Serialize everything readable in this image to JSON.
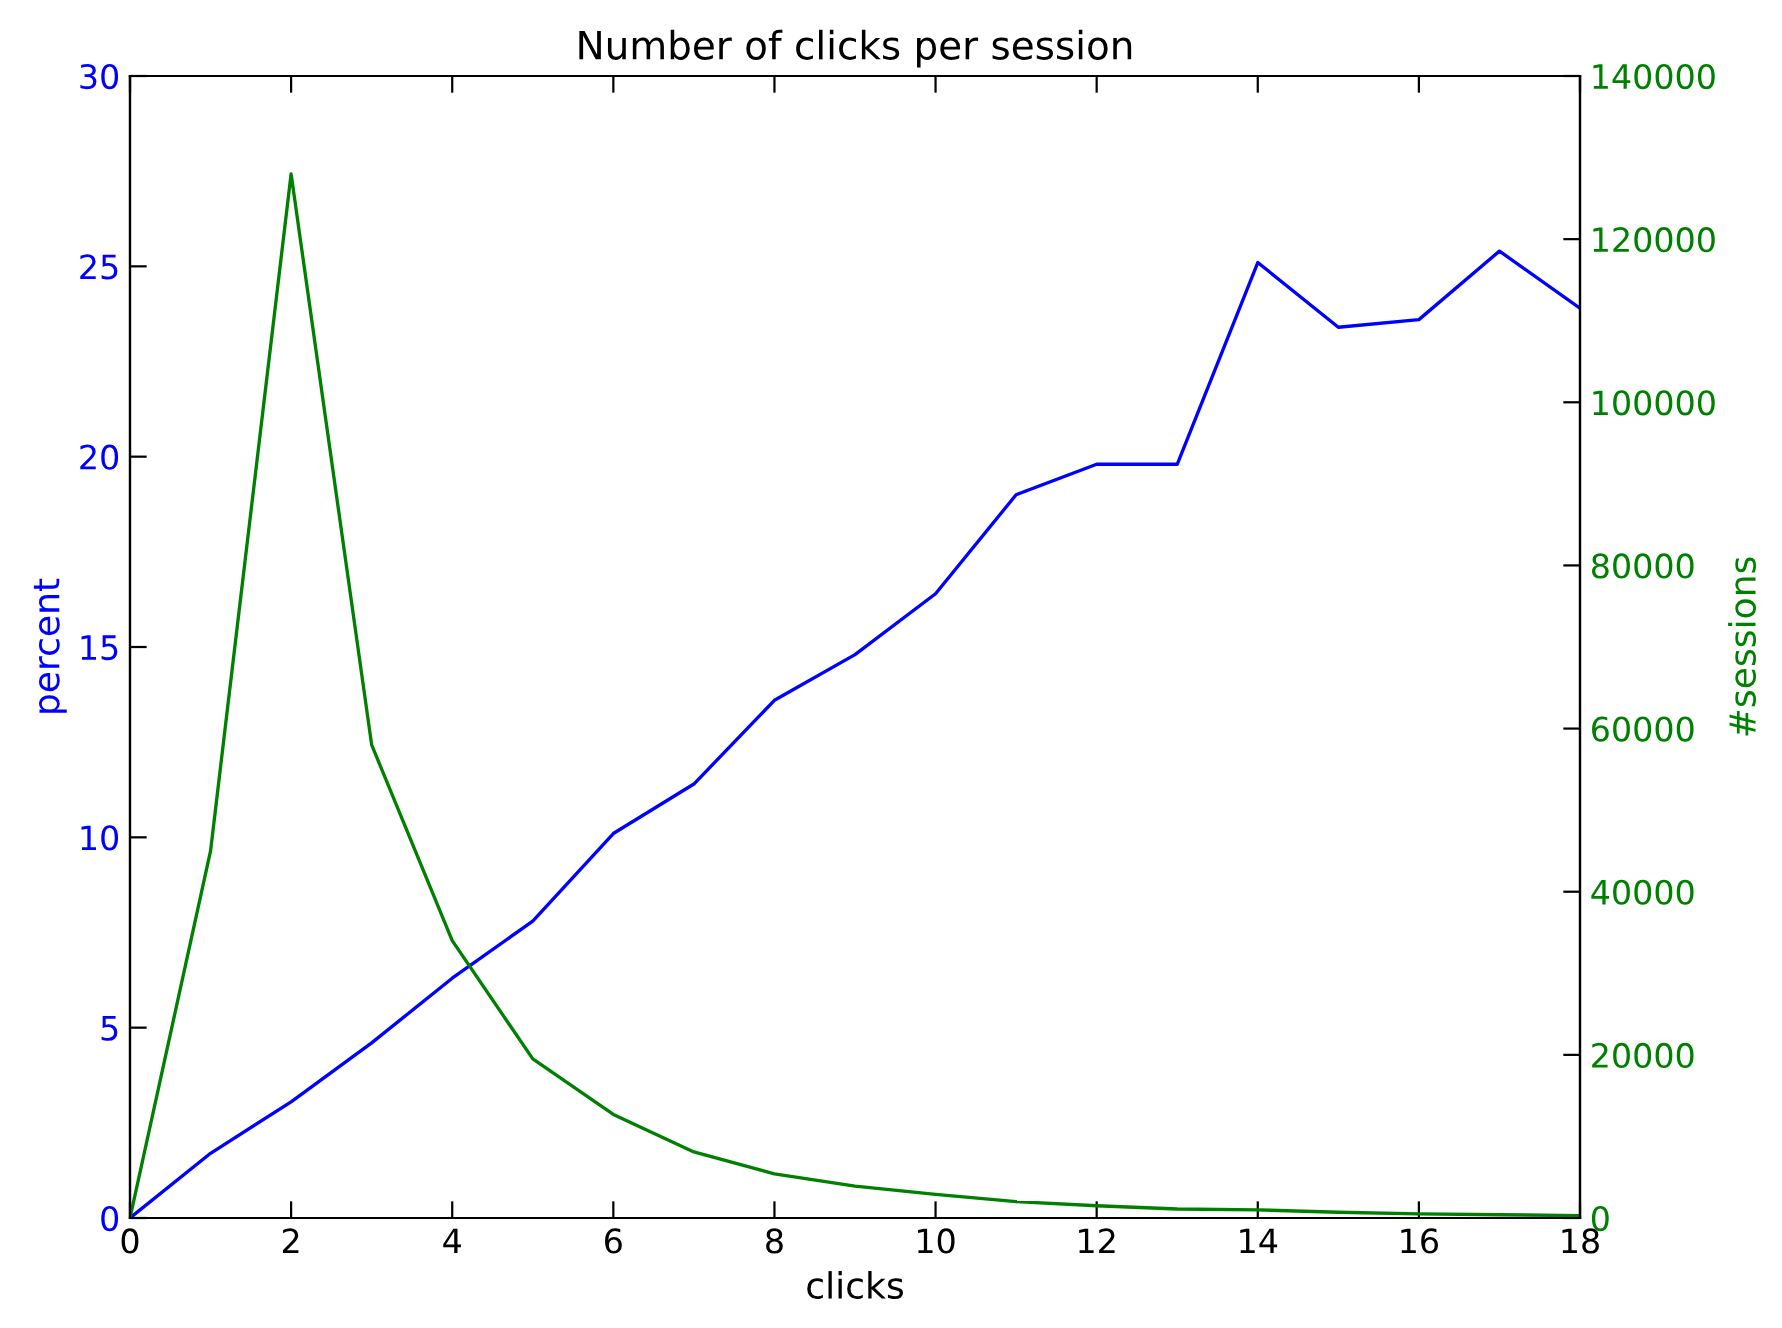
{
  "chart_data": {
    "type": "line",
    "title": "Number of clicks per session",
    "xlabel": "clicks",
    "ylabel": "percent",
    "y2label": "#sessions",
    "x": [
      0,
      1,
      2,
      3,
      4,
      5,
      6,
      7,
      8,
      9,
      10,
      11,
      12,
      13,
      14,
      15,
      16,
      17,
      18
    ],
    "series": [
      {
        "color": "#0000ff",
        "values": [
          0,
          1.7,
          3.05,
          4.6,
          6.3,
          7.8,
          10.1,
          11.4,
          13.6,
          14.8,
          16.4,
          19.0,
          19.8,
          19.8,
          25.1,
          23.4,
          23.6,
          25.4,
          23.9
        ]
      },
      {
        "color": "#008000",
        "axis": "y2",
        "values": [
          0,
          45000,
          128000,
          58000,
          34000,
          19500,
          12700,
          8100,
          5400,
          3900,
          2900,
          2000,
          1500,
          1100,
          1000,
          700,
          500,
          400,
          300
        ]
      }
    ],
    "xlim": [
      0,
      18
    ],
    "xticks": [
      0,
      2,
      4,
      6,
      8,
      10,
      12,
      14,
      16,
      18
    ],
    "ylim": [
      0,
      30
    ],
    "yticks": [
      0,
      5,
      10,
      15,
      20,
      25,
      30
    ],
    "y2lim": [
      0,
      140000
    ],
    "y2ticks": [
      0,
      20000,
      40000,
      60000,
      80000,
      100000,
      120000,
      140000
    ],
    "grid": false,
    "legend": false
  }
}
